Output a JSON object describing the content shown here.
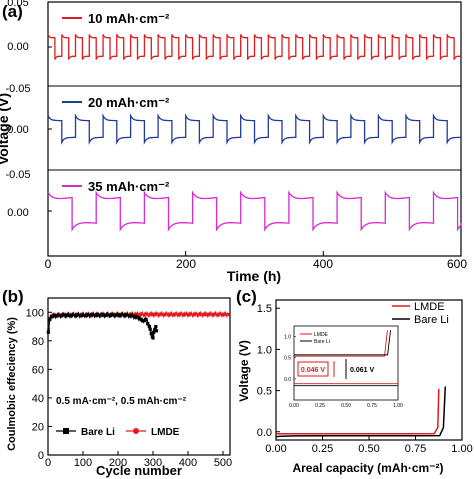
{
  "figure": {
    "panel_a": "(a)",
    "panel_b": "(b)",
    "panel_c": "(c)"
  },
  "chart_data": [
    {
      "type": "line",
      "panel": "(a)",
      "xlabel": "Time (h)",
      "ylabel": "Voltage (V)",
      "xlim": [
        0,
        600
      ],
      "xticks": [
        "0",
        "200",
        "400",
        "600"
      ],
      "subplots": [
        {
          "name": "10 mAh·cm⁻²",
          "color": "#e31a1c",
          "ylim": [
            -0.05,
            0.05
          ],
          "yticks": [
            "0.05",
            "0.00",
            "-0.05"
          ],
          "period_h": 20,
          "amplitude_v": 0.011,
          "overshoot_v": 0.004
        },
        {
          "name": "20 mAh·cm⁻²",
          "color": "#1f3a9e",
          "ylim": [
            -0.05,
            0.05
          ],
          "yticks": [
            "0.05",
            "0.00",
            "-0.05"
          ],
          "period_h": 40,
          "amplitude_v": 0.01,
          "overshoot_v": 0.006
        },
        {
          "name": "35 mAh·cm⁻²",
          "color": "#d62ad6",
          "ylim": [
            -0.05,
            0.05
          ],
          "yticks": [
            "0.00"
          ],
          "period_h": 70,
          "amplitude_v": 0.012,
          "overshoot_v": 0.01
        }
      ]
    },
    {
      "type": "scatter",
      "panel": "(b)",
      "xlabel": "Cycle number",
      "ylabel": "Coulmobic effeciency (%)",
      "xlim": [
        0,
        520
      ],
      "ylim": [
        0,
        110
      ],
      "xticks": [
        "0",
        "100",
        "200",
        "300",
        "400",
        "500"
      ],
      "yticks": [
        "0",
        "20",
        "40",
        "60",
        "80",
        "100"
      ],
      "annotation": "0.5 mA·cm⁻², 0.5 mAh·cm⁻²",
      "legend_position": "bottom",
      "series": [
        {
          "name": "Bare Li",
          "color": "#000000",
          "x": [
            1,
            5,
            10,
            20,
            40,
            60,
            80,
            100,
            120,
            140,
            160,
            180,
            200,
            220,
            240,
            260,
            270,
            280,
            285,
            290,
            292,
            295,
            298,
            300,
            302,
            305,
            308,
            310
          ],
          "y": [
            86,
            95,
            97,
            97.5,
            97.8,
            97.8,
            97.9,
            97.9,
            98,
            98,
            98,
            98,
            98,
            98,
            97.5,
            96,
            94,
            95,
            92,
            90,
            88,
            85,
            83,
            82,
            86,
            88,
            90,
            87
          ]
        },
        {
          "name": "LMDE",
          "color": "#e31a1c",
          "x": [
            1,
            5,
            10,
            20,
            50,
            100,
            150,
            200,
            250,
            300,
            350,
            400,
            450,
            500,
            515
          ],
          "y": [
            88,
            96,
            97.5,
            98,
            98.2,
            98.3,
            98.4,
            98.4,
            98.5,
            98.5,
            98.5,
            98.5,
            98.5,
            98.5,
            98.5
          ]
        }
      ]
    },
    {
      "type": "line",
      "panel": "(c)",
      "xlabel": "Areal capacity (mAh·cm⁻²)",
      "ylabel": "Voltage (V)",
      "xlim": [
        0,
        1.0
      ],
      "ylim": [
        -0.1,
        1.6
      ],
      "xticks": [
        "0.00",
        "0.25",
        "0.50",
        "0.75",
        "1.00"
      ],
      "yticks": [
        "0.0",
        "0.5",
        "1.0",
        "1.5"
      ],
      "legend_position": "top-right",
      "series": [
        {
          "name": "LMDE",
          "color": "#e31a1c",
          "x": [
            0,
            0.005,
            0.02,
            0.1,
            0.3,
            0.5,
            0.7,
            0.85,
            0.87,
            0.875
          ],
          "y": [
            -0.02,
            -0.023,
            -0.023,
            -0.023,
            -0.023,
            -0.023,
            -0.023,
            -0.022,
            0.05,
            0.52
          ]
        },
        {
          "name": "Bare Li",
          "color": "#000000",
          "x": [
            0,
            0.005,
            0.02,
            0.1,
            0.3,
            0.5,
            0.7,
            0.88,
            0.9,
            0.91
          ],
          "y": [
            -0.05,
            -0.06,
            -0.055,
            -0.05,
            -0.048,
            -0.048,
            -0.048,
            -0.047,
            0.05,
            0.55
          ]
        }
      ],
      "inset": {
        "xlim": [
          0,
          1.0
        ],
        "ylim": [
          -0.5,
          1.25
        ],
        "xticks": [
          "0.00",
          "0.25",
          "0.50",
          "0.75",
          "1.00"
        ],
        "yticks": [
          "0.0",
          "0.5",
          "1.0"
        ],
        "legend": [
          "LMDE",
          "Bare Li"
        ],
        "annotations": [
          {
            "text": "0.046 V",
            "color": "#e31a1c"
          },
          {
            "text": "0.061 V",
            "color": "#000000"
          }
        ],
        "series": [
          {
            "name": "LMDE",
            "color": "#e31a1c",
            "upper": 0.025,
            "lower": -0.021,
            "x_end": 0.87
          },
          {
            "name": "Bare Li",
            "color": "#000000",
            "upper": 0.031,
            "lower": -0.03,
            "x_end": 0.9
          }
        ]
      }
    }
  ]
}
